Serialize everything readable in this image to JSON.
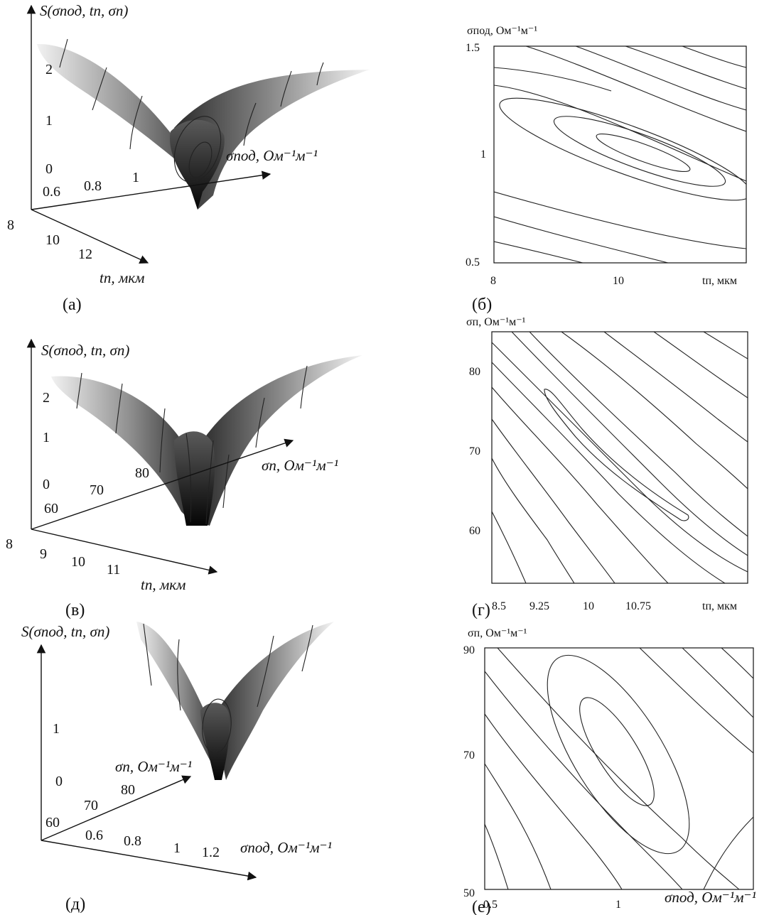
{
  "axis_labels": {
    "S_func": "S(σпод, tп, σп)",
    "sigma_pod_axis": "σпод, Ом⁻¹м⁻¹",
    "sigma_p_axis": "σп, Ом⁻¹м⁻¹",
    "t_p_axis": "tп, мкм"
  },
  "captions": [
    "(а)",
    "(б)",
    "(в)",
    "(г)",
    "(д)",
    "(е)"
  ],
  "chart_data": [
    {
      "id": "a",
      "type": "surface",
      "z_ticks": [
        "0",
        "1",
        "2"
      ],
      "x_ticks": [
        "0.6",
        "0.8",
        "1"
      ],
      "y_ticks": [
        "8",
        "10",
        "12"
      ]
    },
    {
      "id": "b",
      "type": "contour",
      "x_range": [
        8,
        11.5
      ],
      "y_range": [
        0.5,
        1.5
      ],
      "x_ticks": [
        "8",
        "10"
      ],
      "y_ticks": [
        "0.5",
        "1",
        "1.5"
      ],
      "minimum": {
        "x": 10.0,
        "y": 1.0
      }
    },
    {
      "id": "v",
      "type": "surface",
      "z_ticks": [
        "0",
        "1",
        "2"
      ],
      "x_ticks": [
        "60",
        "70",
        "80"
      ],
      "y_ticks": [
        "8",
        "9",
        "10",
        "11"
      ]
    },
    {
      "id": "g",
      "type": "contour",
      "x_range": [
        8.5,
        11.5
      ],
      "y_range": [
        55,
        85
      ],
      "x_ticks": [
        "8.5",
        "9.25",
        "10",
        "10.75"
      ],
      "y_ticks": [
        "60",
        "70",
        "80"
      ],
      "minimum": {
        "x": 10.15,
        "y": 69.5
      }
    },
    {
      "id": "d",
      "type": "surface",
      "z_ticks": [
        "0",
        "1"
      ],
      "x_ticks": [
        "0.6",
        "0.8",
        "1",
        "1.2"
      ],
      "y_ticks": [
        "60",
        "70",
        "80"
      ]
    },
    {
      "id": "e",
      "type": "contour",
      "x_range": [
        0.47,
        1.4
      ],
      "y_range": [
        50,
        90
      ],
      "x_ticks": [
        "0.5",
        "1"
      ],
      "y_ticks": [
        "50",
        "70",
        "90"
      ],
      "minimum": {
        "x": 1.0,
        "y": 70.0
      }
    }
  ]
}
